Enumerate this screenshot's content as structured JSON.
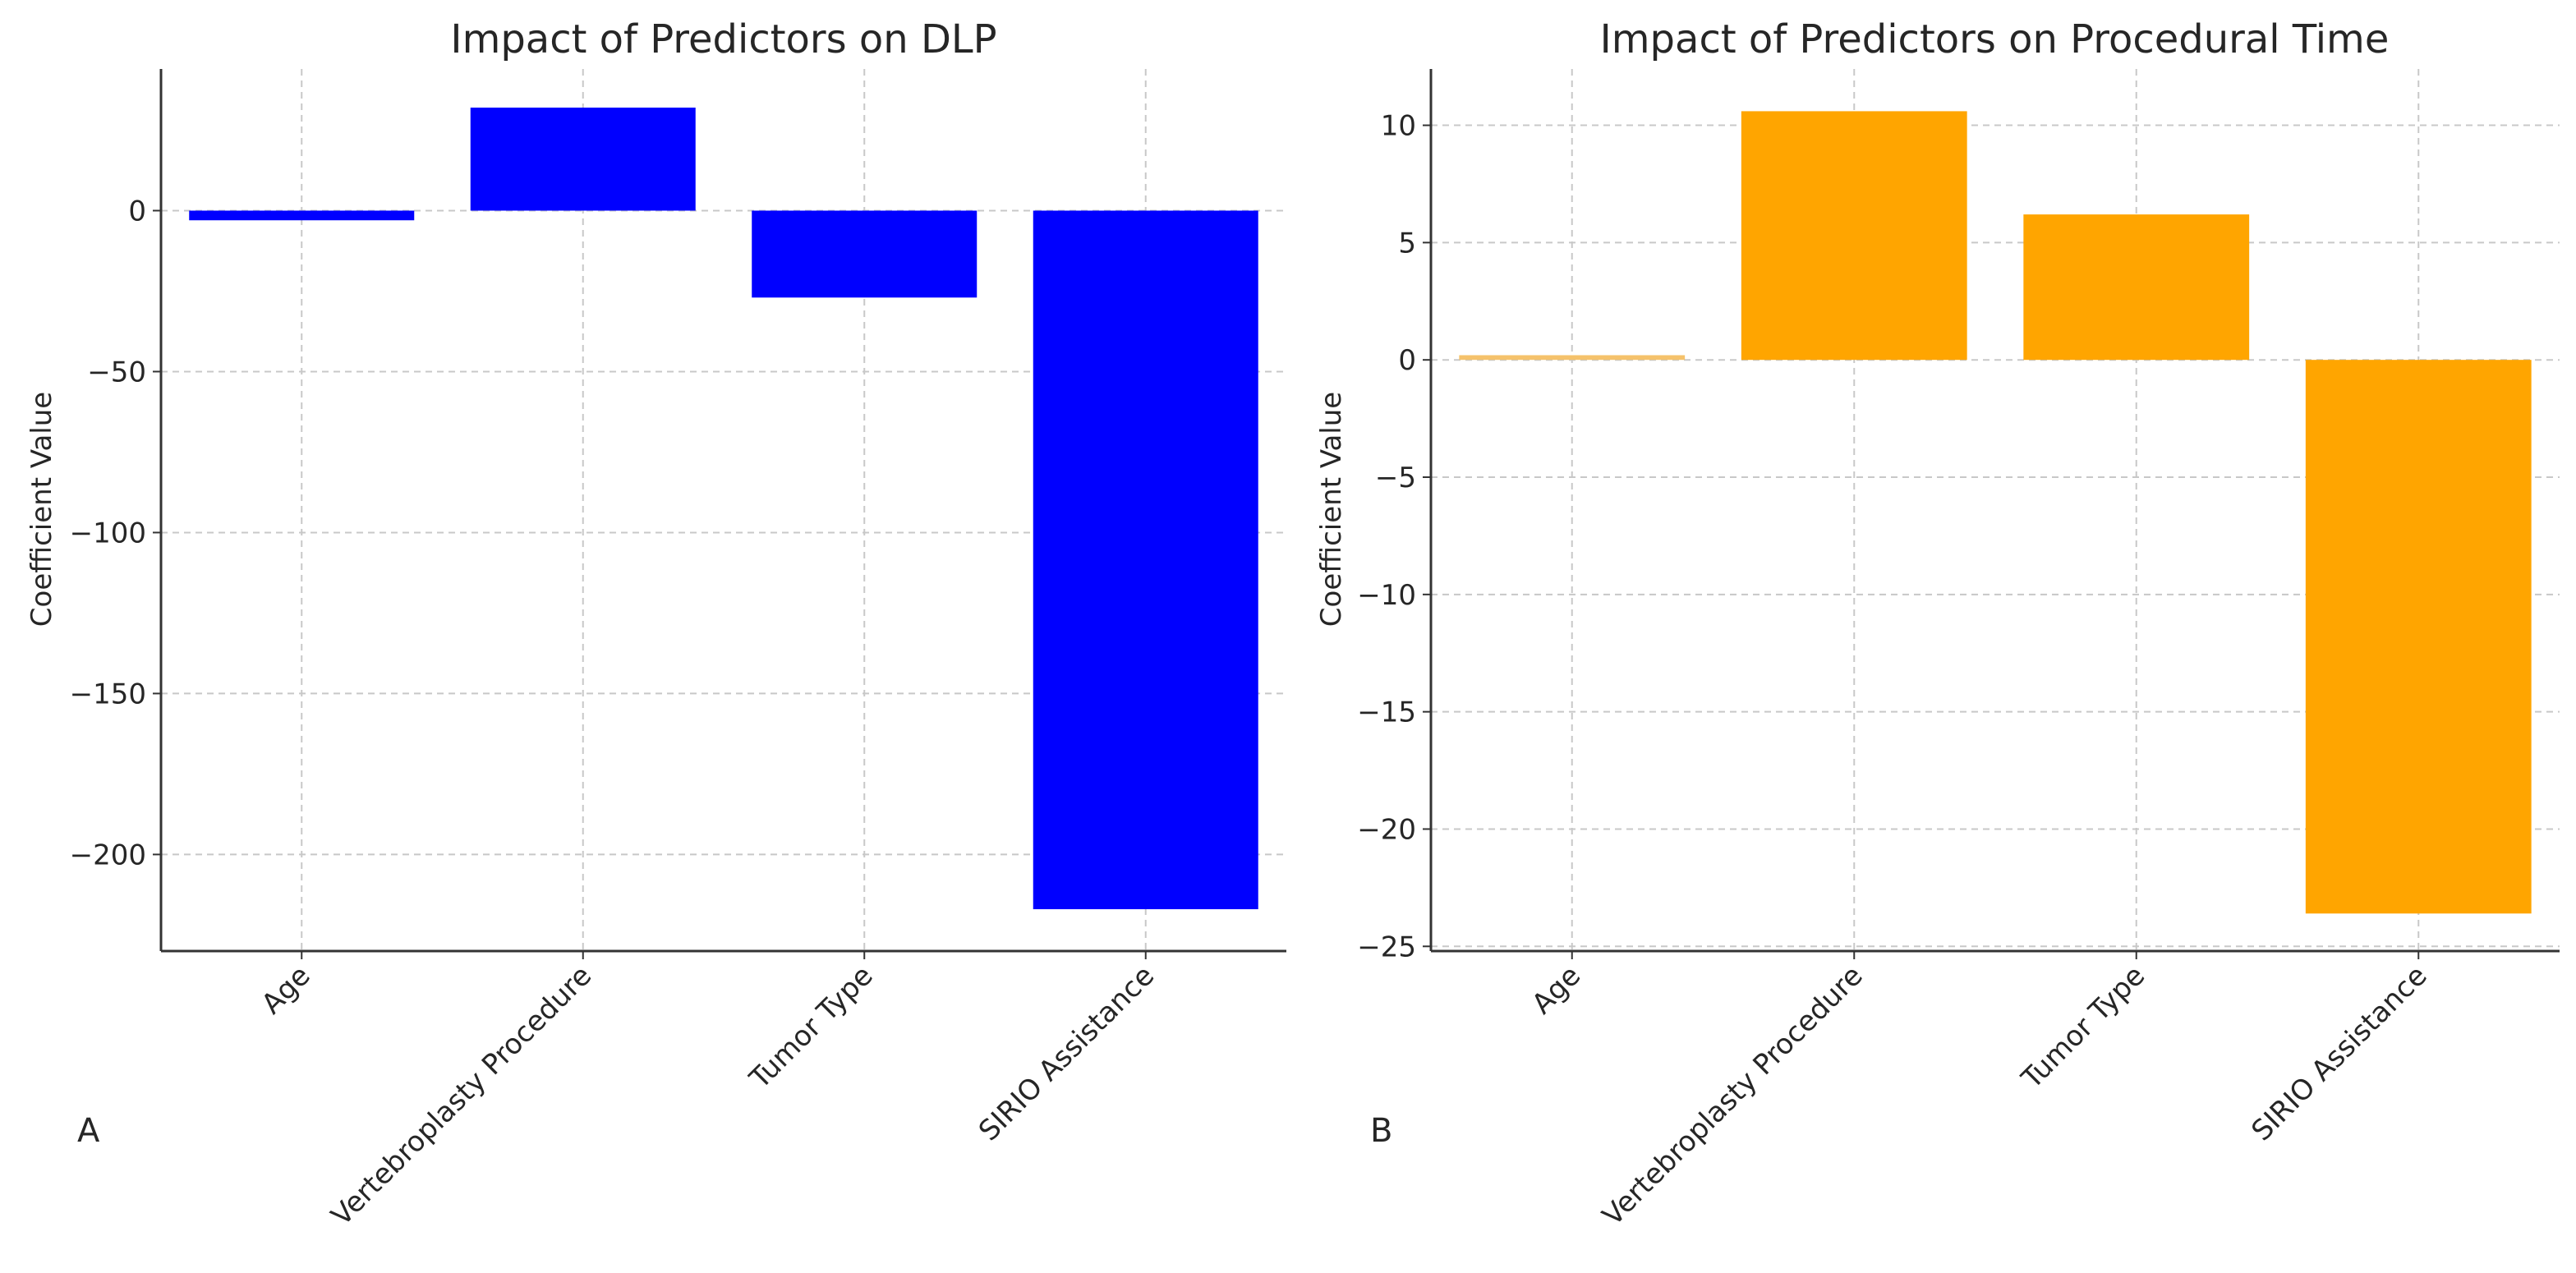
{
  "chart_data": [
    {
      "type": "bar",
      "panel_label": "A",
      "title": "Impact of Predictors on DLP",
      "xlabel": "",
      "ylabel": "Coefficient Value",
      "categories": [
        "Age",
        "Vertebroplasty Procedure",
        "Tumor Type",
        "SIRIO Assistance"
      ],
      "values": [
        -3,
        32,
        -27,
        -217
      ],
      "ylim": [
        -230,
        44
      ],
      "yticks": [
        0,
        -50,
        -100,
        -150,
        -200
      ],
      "ytick_labels": [
        "0",
        "−50",
        "−100",
        "−150",
        "−200"
      ],
      "bar_color": "#0000ff",
      "grid": true
    },
    {
      "type": "bar",
      "panel_label": "B",
      "title": "Impact of Predictors on Procedural Time",
      "xlabel": "",
      "ylabel": "Coefficient Value",
      "categories": [
        "Age",
        "Vertebroplasty Procedure",
        "Tumor Type",
        "SIRIO Assistance"
      ],
      "values": [
        0.2,
        10.6,
        6.2,
        -23.6
      ],
      "ylim": [
        -25.2,
        12.4
      ],
      "yticks": [
        10,
        5,
        0,
        -5,
        -10,
        -15,
        -20,
        -25
      ],
      "ytick_labels": [
        "10",
        "5",
        "0",
        "−5",
        "−10",
        "−15",
        "−20",
        "−25"
      ],
      "bar_color": "#ffa500",
      "grid": true
    }
  ]
}
